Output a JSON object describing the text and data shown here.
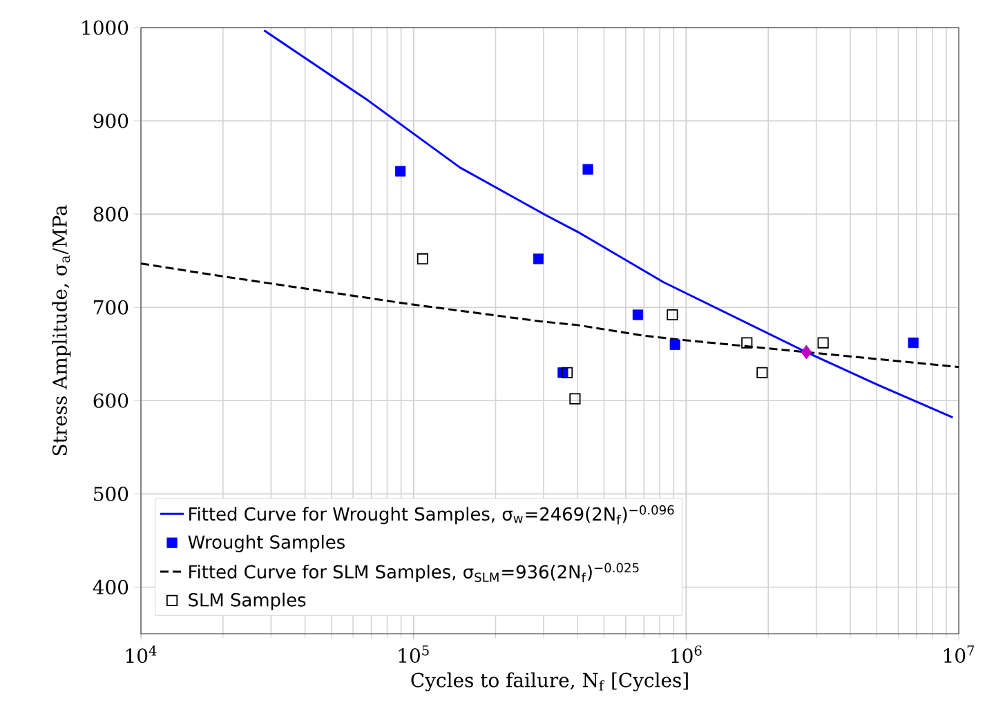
{
  "chart_data": {
    "type": "scatter",
    "xlabel": "Cycles to failure, N$_{f}$ [Cycles]",
    "ylabel": "Stress Amplitude, σ$_{a}$/MPa",
    "log": "x",
    "grid": true,
    "legend": "bottom left",
    "xlim": [
      10000,
      10000000
    ],
    "ylim": [
      350,
      1000
    ],
    "xticks": [
      {
        "value": 10000,
        "label": "10$^{4}$"
      },
      {
        "value": 100000,
        "label": "10$^{5}$"
      },
      {
        "value": 1000000,
        "label": "10$^{6}$"
      },
      {
        "value": 10000000,
        "label": "10$^{7}$"
      }
    ],
    "yticks": [
      400,
      500,
      600,
      700,
      800,
      900,
      1000
    ],
    "series": [
      {
        "name": "Fitted Curve for Wrought Samples, σ$_{w}$=2469(2N$_{f}$)$^{−0.096}$",
        "type": "line",
        "color": "#0000ff",
        "line_style": "solid",
        "marker": "none",
        "x": [
          28300,
          68000,
          148000,
          305000,
          400000,
          826000,
          2760000,
          5040000,
          9500000
        ],
        "values": [
          997,
          922,
          850,
          799,
          781,
          727,
          652,
          617,
          582
        ]
      },
      {
        "name": "Wrought Samples",
        "color": "#0000ff",
        "marker": "square",
        "x": [
          89500,
          436000,
          287000,
          665000,
          910000,
          353000,
          6810000
        ],
        "values": [
          846,
          848,
          752,
          692,
          660,
          630,
          662
        ]
      },
      {
        "name": "Fitted Curve for SLM Samples, σ$_{SLM}$=936(2N$_{f}$)$^{−0.025}$",
        "type": "line",
        "color": "#000000",
        "line_style": "dashed",
        "marker": "none",
        "x": [
          10000,
          19200,
          94000,
          292000,
          400000,
          686000,
          900000,
          2760000,
          10000000
        ],
        "values": [
          747,
          734,
          704,
          685,
          681,
          670,
          666,
          652,
          636
        ]
      },
      {
        "name": "SLM Samples",
        "color": "#000000",
        "marker": "square_open",
        "x": [
          108000,
          890000,
          366000,
          391000,
          1670000,
          1900000,
          3180000
        ],
        "values": [
          752,
          692,
          630,
          602,
          662,
          630,
          662
        ]
      },
      {
        "color": "#c000c0",
        "marker": "diamond",
        "x": [
          2760000
        ],
        "values": [
          652
        ]
      }
    ]
  }
}
